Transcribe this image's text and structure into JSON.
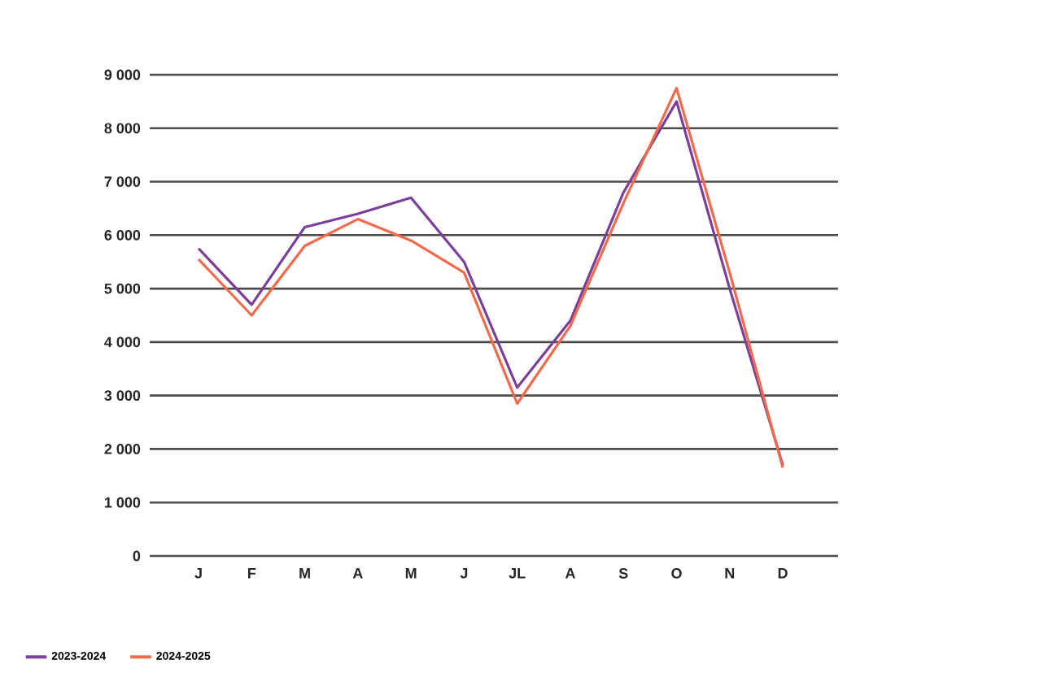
{
  "chart_data": {
    "type": "line",
    "categories": [
      "J",
      "F",
      "M",
      "A",
      "M",
      "J",
      "JL",
      "A",
      "S",
      "O",
      "N",
      "D"
    ],
    "series": [
      {
        "name": "2023-2024",
        "color": "#7b3f98",
        "values": [
          5750,
          4700,
          6150,
          6400,
          6700,
          5500,
          3150,
          4400,
          6800,
          8500,
          5000,
          1700
        ]
      },
      {
        "name": "2024-2025",
        "color": "#f26a4b",
        "values": [
          5550,
          4500,
          5800,
          6300,
          5900,
          5300,
          2850,
          4300,
          6600,
          8750,
          5300,
          1650
        ]
      }
    ],
    "ylim": [
      0,
      9000
    ],
    "yticks": [
      0,
      {
        "value": 1000,
        "label": "1 000"
      },
      {
        "value": 2000,
        "label": "2 000"
      },
      {
        "value": 3000,
        "label": "3 000"
      },
      {
        "value": 4000,
        "label": "4 000"
      },
      {
        "value": 5000,
        "label": "5 000"
      },
      {
        "value": 6000,
        "label": "6 000"
      },
      {
        "value": 7000,
        "label": "7 000"
      },
      {
        "value": 8000,
        "label": "8 000"
      },
      {
        "value": 9000,
        "label": "9 000"
      }
    ],
    "grid": "y",
    "legend": "bottom left",
    "marker": "none",
    "line_style": "solid"
  }
}
